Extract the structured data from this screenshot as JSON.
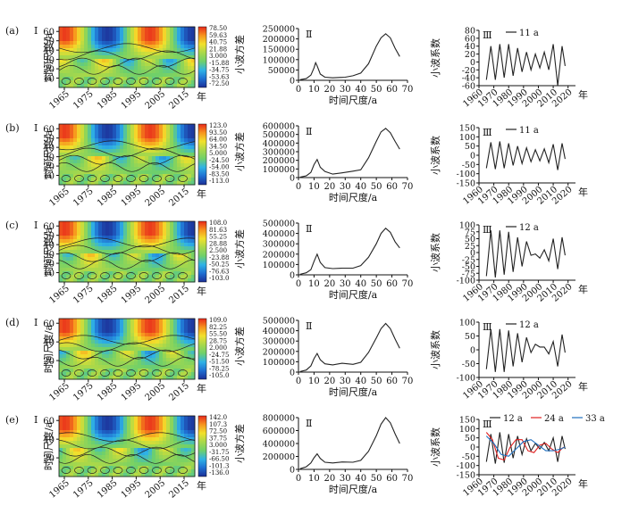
{
  "figure": {
    "colors": {
      "axis": "#111111",
      "line": "#222222",
      "contour": "#222222",
      "red": "#e02020",
      "blue": "#1f6fbf",
      "colormap": [
        "#1c2f96",
        "#1f6fd2",
        "#2fb3e6",
        "#6fd06a",
        "#a9d84a",
        "#f2e12c",
        "#f7941d",
        "#e8291b"
      ]
    }
  },
  "chart_data": [
    {
      "panel": "(a)",
      "type": "heatmap",
      "roman": "Ⅰ",
      "ylabel": "时间尺度/a",
      "x_ticks": [
        "1965",
        "1975",
        "1985",
        "1995",
        "2005",
        "2015"
      ],
      "x_unit": "年",
      "ylim": [
        0,
        65
      ],
      "y_ticks": [
        10,
        20,
        30,
        40,
        50,
        60
      ],
      "colorbar": [
        "78.50",
        "59.63",
        "40.75",
        "21.88",
        "3.000",
        "-15.88",
        "-34.75",
        "-53.63",
        "-72.50"
      ]
    },
    {
      "panel": "(a)",
      "type": "line",
      "roman": "Ⅱ",
      "xlabel": "时间尺度/a",
      "ylabel": "小波方差",
      "xlim": [
        0,
        70
      ],
      "x_ticks": [
        0,
        10,
        20,
        30,
        40,
        50,
        60,
        70
      ],
      "ylim": [
        0,
        250000
      ],
      "y_ticks": [
        0,
        50000,
        100000,
        150000,
        200000,
        250000
      ],
      "x": [
        1,
        5,
        8,
        10,
        11,
        12,
        14,
        17,
        22,
        30,
        35,
        40,
        45,
        50,
        53,
        56,
        59,
        62,
        65
      ],
      "y": [
        3000,
        8000,
        25000,
        60000,
        85000,
        70000,
        30000,
        15000,
        12000,
        15000,
        22000,
        35000,
        80000,
        165000,
        205000,
        225000,
        205000,
        155000,
        115000
      ]
    },
    {
      "panel": "(a)",
      "type": "line",
      "roman": "Ⅲ",
      "ylabel": "小波系数",
      "xlim": [
        1960,
        2025
      ],
      "x_ticks": [
        1960,
        1970,
        1980,
        1990,
        2000,
        2010,
        2020
      ],
      "x_unit": "年",
      "ylim": [
        -60,
        80
      ],
      "y_ticks": [
        -60,
        -40,
        -20,
        0,
        20,
        40,
        60,
        80
      ],
      "series": [
        {
          "name": "11 a",
          "x": [
            1965,
            1968,
            1971,
            1974,
            1977,
            1980,
            1983,
            1986,
            1989,
            1992,
            1995,
            1998,
            2001,
            2004,
            2007,
            2010,
            2013,
            2016,
            2018
          ],
          "y": [
            -45,
            40,
            -45,
            45,
            -40,
            45,
            -35,
            35,
            -25,
            25,
            -20,
            20,
            -15,
            25,
            -20,
            45,
            -60,
            40,
            -10
          ]
        }
      ]
    },
    {
      "panel": "(b)",
      "type": "heatmap",
      "roman": "Ⅰ",
      "ylabel": "时间尺度/a",
      "x_ticks": [
        "1965",
        "1975",
        "1985",
        "1995",
        "2005",
        "2015"
      ],
      "x_unit": "年",
      "ylim": [
        0,
        65
      ],
      "y_ticks": [
        10,
        20,
        30,
        40,
        50,
        60
      ],
      "colorbar": [
        "123.0",
        "93.50",
        "64.00",
        "34.50",
        "5.000",
        "-24.50",
        "-54.00",
        "-83.50",
        "-113.0"
      ]
    },
    {
      "panel": "(b)",
      "type": "line",
      "roman": "Ⅱ",
      "xlabel": "时间尺度/a",
      "ylabel": "小波方差",
      "xlim": [
        0,
        70
      ],
      "x_ticks": [
        0,
        10,
        20,
        30,
        40,
        50,
        60,
        70
      ],
      "ylim": [
        0,
        600000
      ],
      "y_ticks": [
        0,
        100000,
        200000,
        300000,
        400000,
        500000,
        600000
      ],
      "x": [
        1,
        5,
        8,
        10,
        12,
        14,
        17,
        22,
        28,
        35,
        40,
        45,
        50,
        53,
        56,
        59,
        62,
        65
      ],
      "y": [
        5000,
        20000,
        60000,
        150000,
        210000,
        120000,
        70000,
        40000,
        55000,
        75000,
        90000,
        230000,
        420000,
        530000,
        570000,
        520000,
        420000,
        330000
      ]
    },
    {
      "panel": "(b)",
      "type": "line",
      "roman": "Ⅲ",
      "ylabel": "小波系数",
      "xlim": [
        1960,
        2025
      ],
      "x_ticks": [
        1960,
        1970,
        1980,
        1990,
        2000,
        2010,
        2020
      ],
      "x_unit": "年",
      "ylim": [
        -150,
        150
      ],
      "y_ticks": [
        -150,
        -100,
        -50,
        0,
        50,
        100,
        150
      ],
      "series": [
        {
          "name": "11 a",
          "x": [
            1965,
            1968,
            1971,
            1974,
            1977,
            1980,
            1983,
            1986,
            1989,
            1992,
            1995,
            1998,
            2001,
            2004,
            2007,
            2010,
            2013,
            2016,
            2018
          ],
          "y": [
            -70,
            70,
            -75,
            75,
            -70,
            65,
            -55,
            50,
            -45,
            40,
            -35,
            30,
            -30,
            35,
            -40,
            60,
            -80,
            65,
            -20
          ]
        }
      ]
    },
    {
      "panel": "(c)",
      "type": "heatmap",
      "roman": "Ⅰ",
      "ylabel": "时间尺度/a",
      "x_ticks": [
        "1965",
        "1975",
        "1985",
        "1995",
        "2005",
        "2015"
      ],
      "x_unit": "年",
      "ylim": [
        0,
        65
      ],
      "y_ticks": [
        10,
        20,
        30,
        40,
        50,
        60
      ],
      "colorbar": [
        "108.0",
        "81.63",
        "55.25",
        "28.88",
        "2.500",
        "-23.88",
        "-50.25",
        "-76.63",
        "-103.0"
      ]
    },
    {
      "panel": "(c)",
      "type": "line",
      "roman": "Ⅱ",
      "xlabel": "时间尺度/a",
      "ylabel": "小波方差",
      "xlim": [
        0,
        70
      ],
      "x_ticks": [
        0,
        10,
        20,
        30,
        40,
        50,
        60,
        70
      ],
      "ylim": [
        0,
        500000
      ],
      "y_ticks": [
        0,
        100000,
        200000,
        300000,
        400000,
        500000
      ],
      "x": [
        1,
        5,
        8,
        10,
        12,
        14,
        17,
        22,
        28,
        35,
        40,
        45,
        50,
        53,
        56,
        59,
        62,
        65
      ],
      "y": [
        5000,
        20000,
        50000,
        130000,
        200000,
        120000,
        70000,
        60000,
        65000,
        65000,
        90000,
        170000,
        300000,
        400000,
        450000,
        410000,
        320000,
        260000
      ]
    },
    {
      "panel": "(c)",
      "type": "line",
      "roman": "Ⅲ",
      "ylabel": "小波系数",
      "xlim": [
        1960,
        2025
      ],
      "x_ticks": [
        1960,
        1970,
        1980,
        1990,
        2000,
        2010,
        2020
      ],
      "x_unit": "年",
      "ylim": [
        -100,
        100
      ],
      "y_ticks": [
        -100,
        -75,
        -50,
        -25,
        0,
        25,
        50,
        75,
        100
      ],
      "series": [
        {
          "name": "12 a",
          "x": [
            1965,
            1968,
            1971,
            1974,
            1977,
            1980,
            1983,
            1986,
            1989,
            1992,
            1995,
            1998,
            2001,
            2004,
            2007,
            2010,
            2013,
            2016,
            2018
          ],
          "y": [
            -85,
            80,
            -90,
            80,
            -80,
            75,
            -70,
            55,
            -50,
            40,
            -10,
            -5,
            -20,
            10,
            -30,
            50,
            -60,
            55,
            -10
          ]
        }
      ]
    },
    {
      "panel": "(d)",
      "type": "heatmap",
      "roman": "Ⅰ",
      "ylabel": "时间尺度/a",
      "x_ticks": [
        "1965",
        "1975",
        "1985",
        "1995",
        "2005",
        "2015"
      ],
      "x_unit": "年",
      "ylim": [
        0,
        65
      ],
      "y_ticks": [
        20,
        40,
        60
      ],
      "colorbar": [
        "109.0",
        "82.25",
        "55.50",
        "28.75",
        "2.000",
        "-24.75",
        "-51.50",
        "-78.25",
        "-105.0"
      ]
    },
    {
      "panel": "(d)",
      "type": "line",
      "roman": "Ⅱ",
      "xlabel": "时间尺度/a",
      "ylabel": "小波方差",
      "xlim": [
        0,
        70
      ],
      "x_ticks": [
        0,
        10,
        20,
        30,
        40,
        50,
        60,
        70
      ],
      "ylim": [
        0,
        500000
      ],
      "y_ticks": [
        0,
        100000,
        200000,
        300000,
        400000,
        500000
      ],
      "x": [
        1,
        5,
        8,
        10,
        12,
        14,
        17,
        22,
        28,
        35,
        40,
        45,
        50,
        53,
        56,
        59,
        62,
        65
      ],
      "y": [
        5000,
        20000,
        60000,
        130000,
        180000,
        120000,
        80000,
        70000,
        85000,
        75000,
        95000,
        190000,
        330000,
        420000,
        470000,
        420000,
        320000,
        230000
      ]
    },
    {
      "panel": "(d)",
      "type": "line",
      "roman": "Ⅲ",
      "ylabel": "小波系数",
      "xlim": [
        1960,
        2025
      ],
      "x_ticks": [
        1960,
        1970,
        1980,
        1990,
        2000,
        2010,
        2020
      ],
      "x_unit": "年",
      "ylim": [
        -100,
        100
      ],
      "y_ticks": [
        -100,
        -50,
        0,
        50,
        100
      ],
      "series": [
        {
          "name": "12 a",
          "x": [
            1965,
            1968,
            1971,
            1974,
            1977,
            1980,
            1983,
            1986,
            1989,
            1992,
            1995,
            1998,
            2001,
            2004,
            2007,
            2010,
            2013,
            2016,
            2018
          ],
          "y": [
            -70,
            75,
            -80,
            75,
            -80,
            70,
            -60,
            60,
            -45,
            45,
            -10,
            20,
            10,
            10,
            -15,
            30,
            -60,
            55,
            -10
          ]
        }
      ]
    },
    {
      "panel": "(e)",
      "type": "heatmap",
      "roman": "Ⅰ",
      "ylabel": "时间尺度/a",
      "x_ticks": [
        "1965",
        "1975",
        "1985",
        "1995",
        "2005",
        "2015"
      ],
      "x_unit": "年",
      "ylim": [
        0,
        65
      ],
      "y_ticks": [
        20,
        40,
        60
      ],
      "colorbar": [
        "142.0",
        "107.3",
        "72.50",
        "37.75",
        "3.000",
        "-31.75",
        "-66.50",
        "-101.3",
        "-136.0"
      ]
    },
    {
      "panel": "(e)",
      "type": "line",
      "roman": "Ⅱ",
      "xlabel": "时间尺度/a",
      "ylabel": "小波方差",
      "xlim": [
        0,
        70
      ],
      "x_ticks": [
        0,
        10,
        20,
        30,
        40,
        50,
        60,
        70
      ],
      "ylim": [
        0,
        800000
      ],
      "y_ticks": [
        0,
        200000,
        400000,
        600000,
        800000
      ],
      "x": [
        1,
        5,
        8,
        10,
        12,
        14,
        17,
        22,
        28,
        35,
        40,
        45,
        50,
        53,
        56,
        59,
        62,
        65
      ],
      "y": [
        10000,
        40000,
        100000,
        180000,
        240000,
        170000,
        110000,
        100000,
        115000,
        110000,
        140000,
        280000,
        520000,
        700000,
        800000,
        720000,
        550000,
        400000
      ]
    },
    {
      "panel": "(e)",
      "type": "line",
      "roman": "Ⅲ",
      "ylabel": "小波系数",
      "xlim": [
        1960,
        2025
      ],
      "x_ticks": [
        1960,
        1970,
        1980,
        1990,
        2000,
        2010,
        2020
      ],
      "x_unit": "年",
      "ylim": [
        -150,
        150
      ],
      "y_ticks": [
        -150,
        -100,
        -50,
        0,
        50,
        100,
        150
      ],
      "series": [
        {
          "name": "12 a",
          "color": "#222222",
          "x": [
            1965,
            1968,
            1971,
            1974,
            1977,
            1980,
            1983,
            1986,
            1989,
            1992,
            1995,
            1998,
            2001,
            2004,
            2007,
            2010,
            2013,
            2016,
            2018
          ],
          "y": [
            -80,
            70,
            -90,
            80,
            -85,
            70,
            -60,
            60,
            -40,
            45,
            -20,
            20,
            -10,
            25,
            -20,
            50,
            -80,
            60,
            -10
          ]
        },
        {
          "name": "24 a",
          "color": "#e02020",
          "x": [
            1965,
            1969,
            1973,
            1977,
            1981,
            1985,
            1989,
            1993,
            1997,
            2001,
            2005,
            2009,
            2013,
            2017
          ],
          "y": [
            80,
            40,
            -60,
            -70,
            0,
            40,
            40,
            -20,
            -30,
            10,
            20,
            -10,
            -30,
            0
          ]
        },
        {
          "name": "33 a",
          "color": "#1f6fbf",
          "x": [
            1965,
            1970,
            1975,
            1980,
            1985,
            1990,
            1995,
            2000,
            2005,
            2010,
            2015,
            2018
          ],
          "y": [
            60,
            20,
            -40,
            -50,
            -10,
            30,
            40,
            10,
            -20,
            -20,
            -10,
            0
          ]
        }
      ]
    }
  ]
}
